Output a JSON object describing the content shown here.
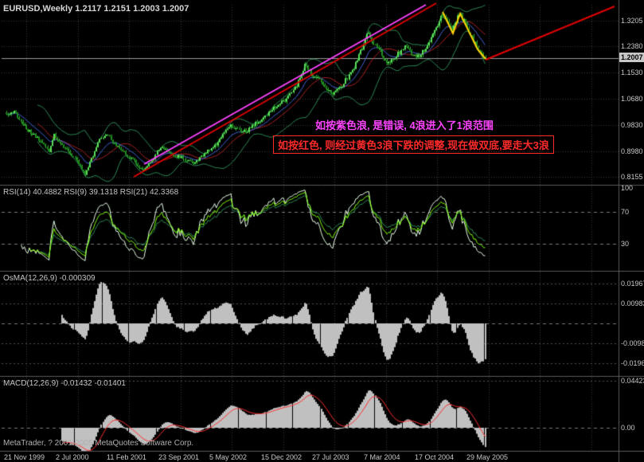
{
  "panels": {
    "price": {
      "title": "EURUSD,Weekly 1.2117 1.2151 1.2003 1.2007",
      "scale_labels": [
        "1.3205",
        "1.2380",
        "1.1530",
        "1.0680",
        "0.9830",
        "0.8980",
        "0.8155"
      ],
      "current_price_label": "1.2007"
    },
    "rsi": {
      "title": "RSI(14) 40.4882  RSI(9) 39.1318  RSI(21) 42.3368",
      "scale_labels": [
        "100",
        "70",
        "30"
      ]
    },
    "osma": {
      "title": "OsMA(12,26,9) -0.000309",
      "scale_labels": [
        "0.01967",
        "0.00983",
        "-0.00983",
        "-0.01967"
      ]
    },
    "macd": {
      "title": "MACD(12,26,9) -0.01432 -0.01401",
      "scale_labels": [
        "0.04423",
        "0.00"
      ]
    }
  },
  "time_axis": {
    "labels": [
      "21 Nov 1999",
      "2 Jul 2000",
      "11 Feb 2001",
      "23 Sep 2001",
      "5 May 2002",
      "15 Dec 2002",
      "27 Jul 2003",
      "7 Mar 2004",
      "17 Oct 2004",
      "29 May 2005"
    ]
  },
  "annotations": [
    {
      "text": "如按紫色浪, 是错误, 4浪进入了1浪范围",
      "color": "#FF44FF",
      "boxed": false
    },
    {
      "text": "如按红色, 则经过黄色3浪下跌的调整,现在做双底,要走大3浪",
      "color": "#FF2A2A",
      "boxed": true
    }
  ],
  "footer": {
    "copyright": "MetaTrader, ? 2001-2005 MetaQuotes Software Corp."
  },
  "colors": {
    "background": "#000000",
    "grid": "#383838",
    "panel_border": "#5A5A5A",
    "text": "#C8C8C8",
    "wick": "#2EAE2E",
    "bull": "#5CE05C",
    "bear": "#1E8F1E",
    "bollinger": "#2E8B57",
    "bollinger_mid": "#B22222",
    "ma_blue": "#4466DD",
    "rsi_1": "#7FFF00",
    "rsi_2": "#E8FFE8",
    "rsi_3": "#2E8B57",
    "histogram": "#C0C0C0",
    "macd_signal": "#FF3030",
    "level_line": "#787878",
    "current_price_line": "#9A9A9A",
    "current_price_badge_bg": "#C8C8C8",
    "current_price_badge_fg": "#000000"
  },
  "chart_data": {
    "type": "candlestick",
    "symbol": "EURUSD",
    "timeframe": "Weekly",
    "title": "EURUSD,Weekly",
    "last_bar_ohlc": {
      "open": 1.2117,
      "high": 1.2151,
      "low": 1.2003,
      "close": 1.2007
    },
    "x_axis": {
      "tick_labels": [
        "21 Nov 1999",
        "2 Jul 2000",
        "11 Feb 2001",
        "23 Sep 2001",
        "5 May 2002",
        "15 Dec 2002",
        "27 Jul 2003",
        "7 Mar 2004",
        "17 Oct 2004",
        "29 May 2005"
      ],
      "bars_total": 293
    },
    "y_axis": {
      "tick_values": [
        1.3205,
        1.238,
        1.153,
        1.068,
        0.983,
        0.898,
        0.8155
      ],
      "current_price": 1.2007
    },
    "weekly_close_anchors": [
      [
        0,
        1.012
      ],
      [
        5,
        1.03
      ],
      [
        9,
        0.99
      ],
      [
        14,
        0.962
      ],
      [
        18,
        0.945
      ],
      [
        22,
        0.928
      ],
      [
        26,
        0.89
      ],
      [
        29,
        0.95
      ],
      [
        33,
        0.922
      ],
      [
        38,
        0.898
      ],
      [
        43,
        0.868
      ],
      [
        48,
        0.827
      ],
      [
        52,
        0.875
      ],
      [
        57,
        0.935
      ],
      [
        61,
        0.958
      ],
      [
        66,
        0.922
      ],
      [
        71,
        0.902
      ],
      [
        76,
        0.875
      ],
      [
        80,
        0.853
      ],
      [
        84,
        0.838
      ],
      [
        89,
        0.868
      ],
      [
        94,
        0.915
      ],
      [
        99,
        0.893
      ],
      [
        104,
        0.883
      ],
      [
        109,
        0.872
      ],
      [
        113,
        0.86
      ],
      [
        118,
        0.875
      ],
      [
        123,
        0.9
      ],
      [
        128,
        0.92
      ],
      [
        133,
        0.958
      ],
      [
        137,
        0.98
      ],
      [
        141,
        0.968
      ],
      [
        146,
        0.962
      ],
      [
        151,
        0.984
      ],
      [
        156,
        1.0
      ],
      [
        161,
        1.028
      ],
      [
        166,
        1.052
      ],
      [
        171,
        1.066
      ],
      [
        176,
        1.1
      ],
      [
        180,
        1.15
      ],
      [
        182,
        1.178
      ],
      [
        186,
        1.15
      ],
      [
        191,
        1.128
      ],
      [
        196,
        1.096
      ],
      [
        198,
        1.083
      ],
      [
        203,
        1.1
      ],
      [
        208,
        1.135
      ],
      [
        213,
        1.18
      ],
      [
        218,
        1.245
      ],
      [
        220,
        1.285
      ],
      [
        224,
        1.25
      ],
      [
        228,
        1.222
      ],
      [
        232,
        1.185
      ],
      [
        237,
        1.205
      ],
      [
        241,
        1.222
      ],
      [
        244,
        1.238
      ],
      [
        248,
        1.212
      ],
      [
        252,
        1.206
      ],
      [
        256,
        1.232
      ],
      [
        260,
        1.275
      ],
      [
        263,
        1.305
      ],
      [
        266,
        1.342
      ],
      [
        269,
        1.325
      ],
      [
        272,
        1.29
      ],
      [
        276,
        1.346
      ],
      [
        279,
        1.32
      ],
      [
        282,
        1.288
      ],
      [
        285,
        1.255
      ],
      [
        288,
        1.222
      ],
      [
        292,
        1.2007
      ]
    ],
    "overlays": [
      "bollinger-bands",
      "blue-moving-average",
      "red-moving-average"
    ],
    "indicator_panels": [
      {
        "name": "RSI",
        "type": "line",
        "levels": [
          100,
          70,
          30
        ],
        "series": [
          {
            "label": "RSI(14)",
            "last_value": 40.4882
          },
          {
            "label": "RSI(9)",
            "last_value": 39.1318
          },
          {
            "label": "RSI(21)",
            "last_value": 42.3368
          }
        ]
      },
      {
        "name": "OsMA",
        "type": "bar",
        "params": "12,26,9",
        "last_value": -0.000309,
        "axis_labels": [
          0.01967,
          0.00983,
          -0.00983,
          -0.01967
        ]
      },
      {
        "name": "MACD",
        "type": "bar",
        "params": "12,26,9",
        "last_macd": -0.01432,
        "last_signal": -0.01401,
        "axis_labels": [
          0.04423,
          0.0
        ]
      }
    ],
    "drawings": {
      "trendlines": [
        {
          "name": "red-major-uptrend",
          "color": "#E00000",
          "width": 2,
          "from": [
            168,
            222
          ],
          "to": [
            548,
            4
          ]
        },
        {
          "name": "red-projection",
          "color": "#E00000",
          "width": 2,
          "from": [
            610,
            75
          ],
          "to": [
            772,
            8
          ]
        },
        {
          "name": "magenta-alt-wave",
          "color": "#FF44FF",
          "width": 2,
          "from": [
            181,
            206
          ],
          "to": [
            535,
            6
          ]
        }
      ],
      "polylines": [
        {
          "name": "yellow-correction-waves",
          "color": "#FFD200",
          "width": 2,
          "points": [
            [
              556,
              15
            ],
            [
              569,
              42
            ],
            [
              578,
              17
            ],
            [
              600,
              62
            ],
            [
              610,
              74
            ]
          ]
        }
      ]
    }
  }
}
